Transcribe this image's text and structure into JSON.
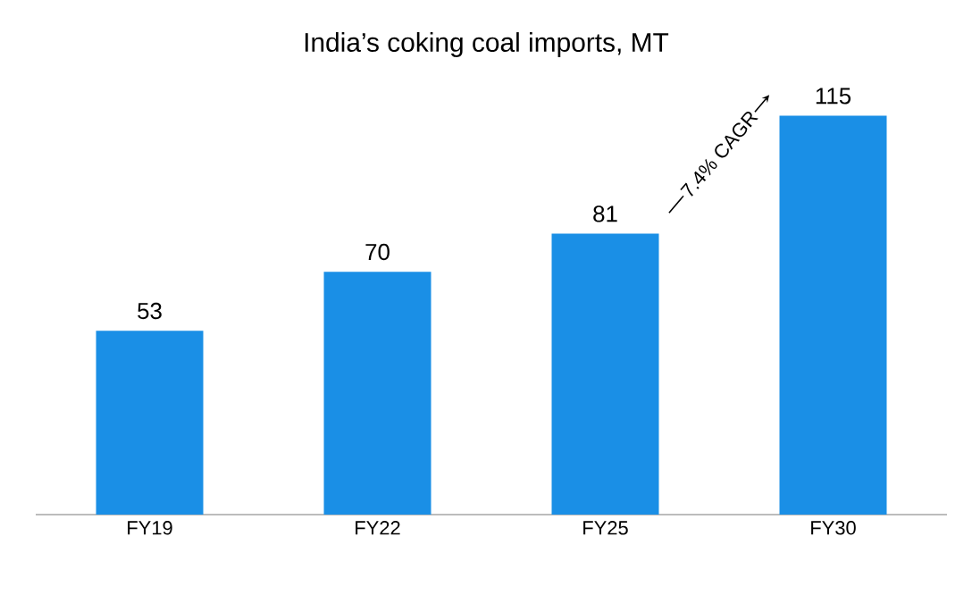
{
  "chart_data": {
    "type": "bar",
    "title": "India’s coking coal imports, MT",
    "categories": [
      "FY19",
      "FY22",
      "FY25",
      "FY30"
    ],
    "values": [
      53,
      70,
      81,
      115
    ],
    "color": "#1a8fe6",
    "data_labels": true,
    "annotations": [
      "7.4% CAGR"
    ]
  }
}
